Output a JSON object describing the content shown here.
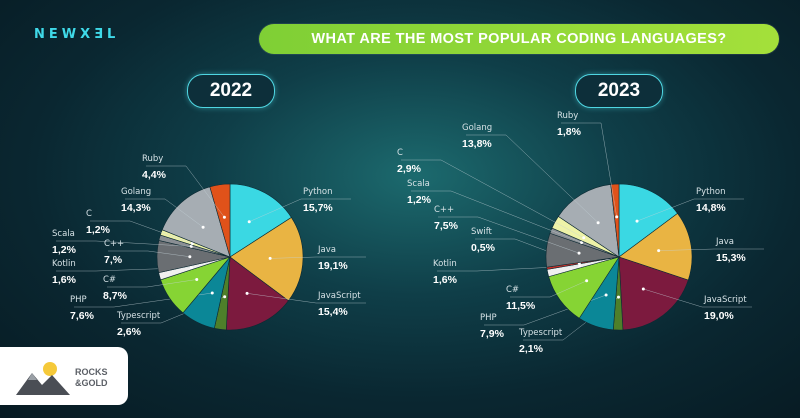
{
  "brand": "NEWXƎL",
  "banner": "WHAT ARE THE MOST POPULAR CODING LANGUAGES?",
  "logo": {
    "line1": "ROCKS",
    "line2": "&GOLD"
  },
  "chart_data": [
    {
      "type": "pie",
      "title": "2022",
      "slices": [
        {
          "name": "Python",
          "value": 15.7,
          "label": "15,7%",
          "color": "#3ad8e3"
        },
        {
          "name": "Java",
          "value": 19.1,
          "label": "19,1%",
          "color": "#e9b443"
        },
        {
          "name": "JavaScript",
          "value": 15.4,
          "label": "15,4%",
          "color": "#7c1a3e"
        },
        {
          "name": "Typescript",
          "value": 2.6,
          "label": "2,6%",
          "color": "#4e7f2a"
        },
        {
          "name": "PHP",
          "value": 7.6,
          "label": "7,6%",
          "color": "#0b8797"
        },
        {
          "name": "C#",
          "value": 8.7,
          "label": "8,7%",
          "color": "#86d434"
        },
        {
          "name": "Kotlin",
          "value": 1.6,
          "label": "1,6%",
          "color": "#f0f0f0"
        },
        {
          "name": "C++",
          "value": 7.0,
          "label": "7,%",
          "color": "#6a6e72"
        },
        {
          "name": "Scala",
          "value": 1.2,
          "label": "1,2%",
          "color": "#8a8f94"
        },
        {
          "name": "C",
          "value": 1.2,
          "label": "1,2%",
          "color": "#eef3a8"
        },
        {
          "name": "Golang",
          "value": 14.3,
          "label": "14,3%",
          "color": "#a6adb3"
        },
        {
          "name": "Ruby",
          "value": 4.4,
          "label": "4,4%",
          "color": "#e0521a"
        }
      ]
    },
    {
      "type": "pie",
      "title": "2023",
      "slices": [
        {
          "name": "Python",
          "value": 14.8,
          "label": "14,8%",
          "color": "#3ad8e3"
        },
        {
          "name": "Java",
          "value": 15.3,
          "label": "15,3%",
          "color": "#e9b443"
        },
        {
          "name": "JavaScript",
          "value": 19.0,
          "label": "19,0%",
          "color": "#7c1a3e"
        },
        {
          "name": "Typescript",
          "value": 2.1,
          "label": "2,1%",
          "color": "#4e7f2a"
        },
        {
          "name": "PHP",
          "value": 7.9,
          "label": "7,9%",
          "color": "#0b8797"
        },
        {
          "name": "C#",
          "value": 11.5,
          "label": "11,5%",
          "color": "#86d434"
        },
        {
          "name": "Kotlin",
          "value": 1.6,
          "label": "1,6%",
          "color": "#f0f0f0"
        },
        {
          "name": "Swift",
          "value": 0.5,
          "label": "0,5%",
          "color": "#c8312a"
        },
        {
          "name": "C++",
          "value": 7.5,
          "label": "7,5%",
          "color": "#6a6e72"
        },
        {
          "name": "Scala",
          "value": 1.2,
          "label": "1,2%",
          "color": "#8a8f94"
        },
        {
          "name": "C",
          "value": 2.9,
          "label": "2,9%",
          "color": "#eef3a8"
        },
        {
          "name": "Golang",
          "value": 13.8,
          "label": "13,8%",
          "color": "#a6adb3"
        },
        {
          "name": "Ruby",
          "value": 1.8,
          "label": "1,8%",
          "color": "#e0521a"
        }
      ]
    }
  ]
}
